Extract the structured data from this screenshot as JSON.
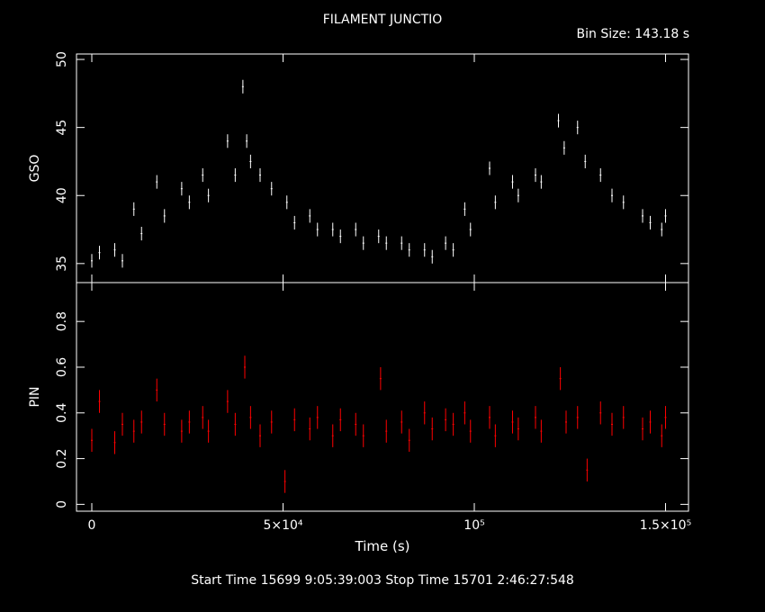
{
  "header": {
    "title": "FILAMENT JUNCTIO",
    "bin_size_label": "Bin Size: 143.18 s"
  },
  "footer": {
    "text": "Start Time 15699  9:05:39:003     Stop Time 15701  2:46:27:548"
  },
  "colors": {
    "background": "#000000",
    "axes": "#ffffff",
    "gso": "#ffffff",
    "pin": "#ff0000"
  },
  "chart_data": [
    {
      "type": "scatter",
      "panel": "top",
      "title": "FILAMENT JUNCTIO",
      "ylabel": "GSO",
      "xlim": [
        -4000,
        156000
      ],
      "ylim": [
        33.6,
        50.4
      ],
      "yticks": [
        35,
        40,
        45,
        50
      ],
      "error_bars": true,
      "series": [
        {
          "name": "GSO",
          "x": [
            0,
            2000,
            6000,
            8000,
            11000,
            13000,
            17000,
            19000,
            23500,
            25500,
            29000,
            30500,
            35500,
            37500,
            39500,
            40500,
            41500,
            44000,
            47000,
            51000,
            53000,
            57000,
            59000,
            63000,
            65000,
            69000,
            71000,
            75000,
            77000,
            81000,
            83000,
            87000,
            89000,
            92500,
            94500,
            97500,
            99000,
            104000,
            105500,
            110000,
            111500,
            116000,
            117500,
            122000,
            123500,
            127000,
            129000,
            133000,
            136000,
            139000,
            144000,
            146000,
            149000,
            150000
          ],
          "y": [
            35.2,
            35.8,
            36.0,
            35.2,
            39.0,
            37.2,
            41.0,
            38.5,
            40.5,
            39.5,
            41.5,
            40.0,
            44.0,
            41.5,
            48.0,
            44.0,
            42.5,
            41.5,
            40.5,
            39.5,
            38.0,
            38.5,
            37.5,
            37.5,
            37.0,
            37.5,
            36.5,
            37.0,
            36.5,
            36.5,
            36.0,
            36.0,
            35.5,
            36.5,
            36.0,
            39.0,
            37.5,
            42.0,
            39.5,
            41.0,
            40.0,
            41.5,
            41.0,
            45.5,
            43.5,
            45.0,
            42.5,
            41.5,
            40.0,
            39.5,
            38.5,
            38.0,
            37.5,
            38.5
          ]
        }
      ]
    },
    {
      "type": "scatter",
      "panel": "bottom",
      "ylabel": "PIN",
      "xlabel": "Time (s)",
      "xlim": [
        -4000,
        156000
      ],
      "ylim": [
        -0.03,
        0.97
      ],
      "yticks": [
        0,
        0.2,
        0.4,
        0.6,
        0.8
      ],
      "xticks": [
        0,
        50000,
        100000,
        150000
      ],
      "xtick_labels": [
        "0",
        "5×10⁴",
        "10⁵",
        "1.5×10⁵"
      ],
      "error_bars": true,
      "series": [
        {
          "name": "PIN",
          "x": [
            0,
            2000,
            6000,
            8000,
            11000,
            13000,
            17000,
            19000,
            23500,
            25500,
            29000,
            30500,
            35500,
            37500,
            40000,
            41500,
            44000,
            47000,
            50500,
            53000,
            57000,
            59000,
            63000,
            65000,
            69000,
            71000,
            75500,
            77000,
            81000,
            83000,
            87000,
            89000,
            92500,
            94500,
            97500,
            99000,
            104000,
            105500,
            110000,
            111500,
            116000,
            117500,
            122500,
            124000,
            127000,
            129500,
            133000,
            136000,
            139000,
            144000,
            146000,
            149000,
            150000
          ],
          "y": [
            0.28,
            0.45,
            0.27,
            0.35,
            0.32,
            0.36,
            0.5,
            0.35,
            0.32,
            0.36,
            0.38,
            0.32,
            0.45,
            0.35,
            0.6,
            0.38,
            0.3,
            0.36,
            0.1,
            0.37,
            0.33,
            0.38,
            0.3,
            0.37,
            0.35,
            0.3,
            0.55,
            0.32,
            0.36,
            0.28,
            0.4,
            0.33,
            0.37,
            0.35,
            0.4,
            0.32,
            0.38,
            0.3,
            0.36,
            0.33,
            0.38,
            0.32,
            0.55,
            0.36,
            0.38,
            0.15,
            0.4,
            0.35,
            0.38,
            0.33,
            0.36,
            0.3,
            0.38
          ]
        }
      ]
    }
  ]
}
